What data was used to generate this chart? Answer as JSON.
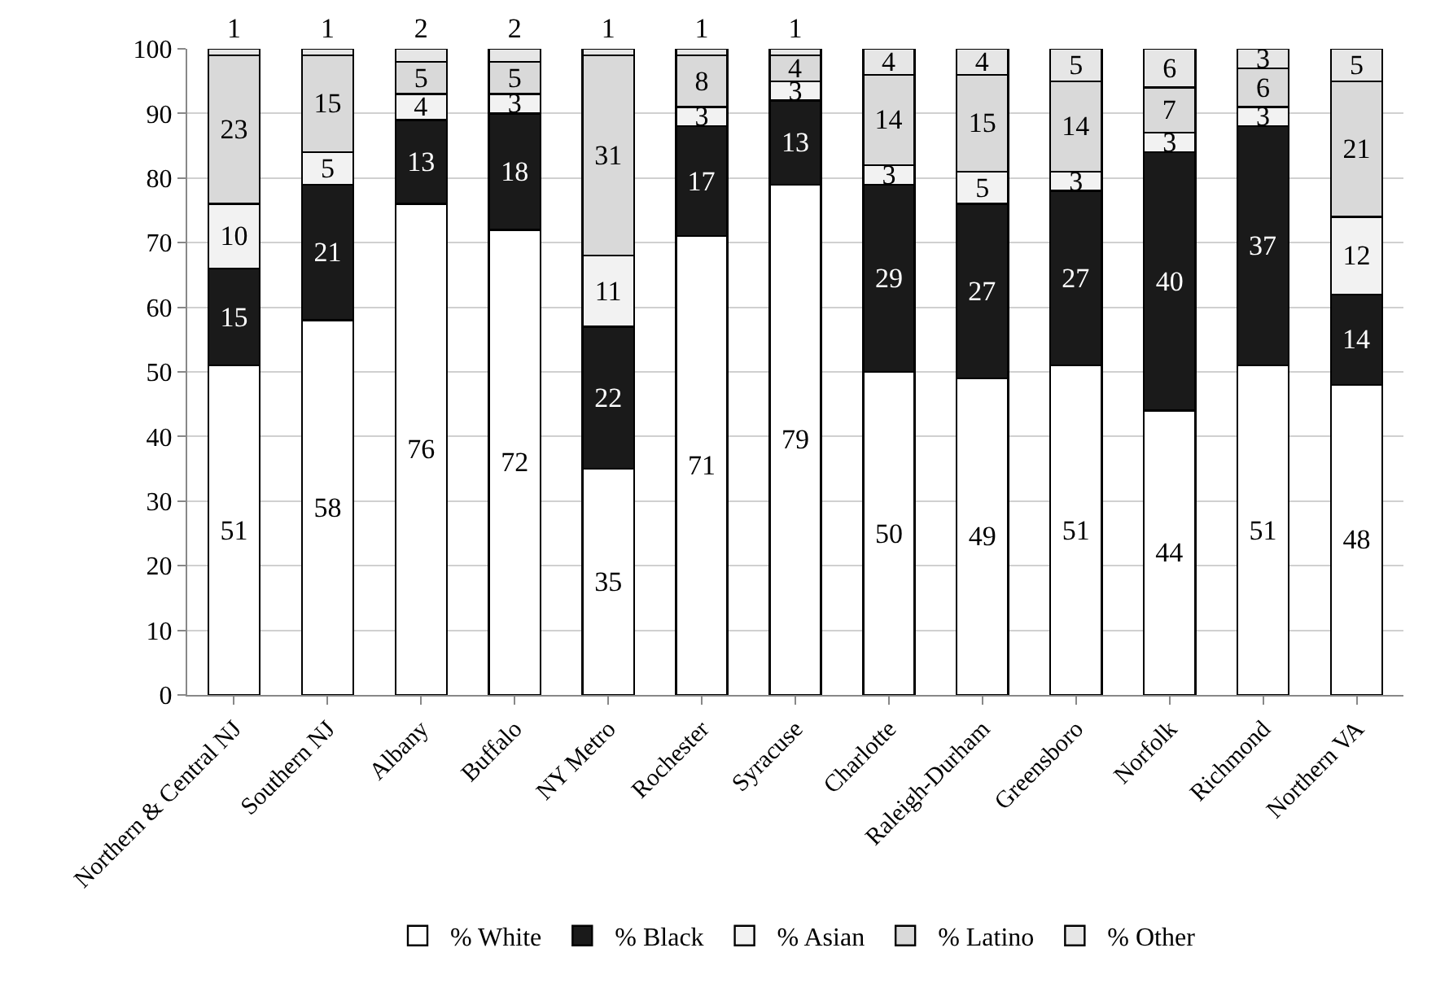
{
  "chart_data": {
    "type": "bar",
    "stacked": true,
    "categories": [
      "Northern & Central NJ",
      "Southern NJ",
      "Albany",
      "Buffalo",
      "NY Metro",
      "Rochester",
      "Syracuse",
      "Charlotte",
      "Raleigh-Durham",
      "Greensboro",
      "Norfolk",
      "Richmond",
      "Northern VA"
    ],
    "series": [
      {
        "name": "% White",
        "color": "#ffffff",
        "values": [
          51,
          58,
          76,
          72,
          35,
          71,
          79,
          50,
          49,
          51,
          44,
          51,
          48
        ]
      },
      {
        "name": "% Black",
        "color": "#1a1a1a",
        "values": [
          15,
          21,
          13,
          18,
          22,
          17,
          13,
          29,
          27,
          27,
          40,
          37,
          14
        ]
      },
      {
        "name": "% Asian",
        "color": "#f2f2f2",
        "values": [
          10,
          5,
          4,
          3,
          11,
          3,
          3,
          3,
          5,
          3,
          3,
          3,
          12
        ]
      },
      {
        "name": "% Latino",
        "color": "#d9d9d9",
        "values": [
          23,
          15,
          5,
          5,
          31,
          8,
          4,
          14,
          15,
          14,
          7,
          6,
          21
        ]
      },
      {
        "name": "% Other",
        "color": "#e6e6e6",
        "values": [
          1,
          1,
          2,
          2,
          1,
          1,
          1,
          4,
          4,
          5,
          6,
          3,
          5
        ]
      }
    ],
    "ylim": [
      0,
      100
    ],
    "yticks": [
      0,
      10,
      20,
      30,
      40,
      50,
      60,
      70,
      80,
      90,
      100
    ],
    "grid": "y",
    "legend": "bottom",
    "data_labels": true
  }
}
